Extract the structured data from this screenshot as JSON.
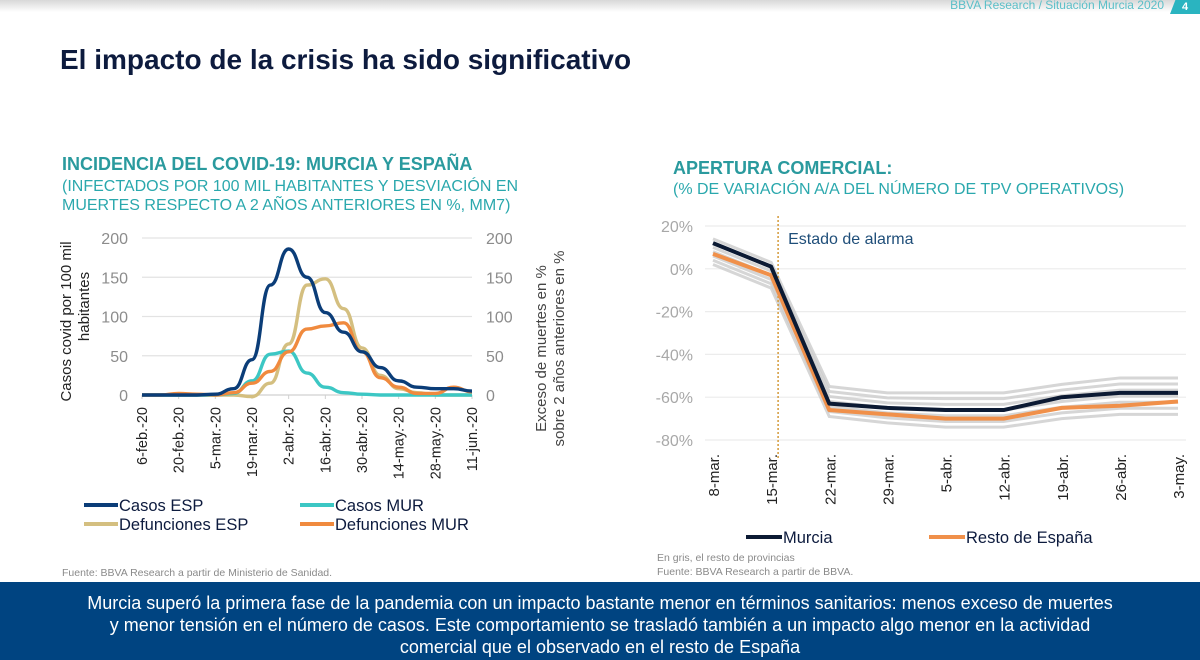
{
  "header": {
    "tag": "BBVA Research / Situación Murcia 2020",
    "page_number": "4"
  },
  "page_title": "El impacto de la crisis ha sido significativo",
  "colors": {
    "casos_esp": "#0b3d78",
    "casos_mur": "#3cc7c4",
    "defunciones_esp": "#d4bf80",
    "defunciones_mur": "#f08a3e",
    "murcia": "#0c1a33",
    "resto_espana": "#f0904a",
    "provincias": "#cccccc",
    "alarm_line": "#d49a3a",
    "banner": "#004481"
  },
  "left_chart": {
    "title": "INCIDENCIA DEL COVID-19: MURCIA Y ESPAÑA",
    "subtitle_line1": "(INFECTADOS POR 100 MIL HABITANTES Y DESVIACIÓN EN",
    "subtitle_line2": "MUERTES RESPECTO A 2 AÑOS ANTERIORES EN %, MM7)",
    "source": "Fuente: BBVA Research a partir de Ministerio de Sanidad."
  },
  "right_chart": {
    "title": "APERTURA COMERCIAL:",
    "subtitle": "(% DE VARIACIÓN A/A DEL NÚMERO DE TPV OPERATIVOS)",
    "note": "En gris, el resto de provincias",
    "source": "Fuente: BBVA Research a partir de BBVA."
  },
  "banner": {
    "line1": "Murcia superó la primera fase de la pandemia con un impacto bastante menor en términos sanitarios: menos exceso de muertes",
    "line2": "y menor tensión en el número de casos. Este comportamiento se trasladó también a un impacto algo menor en la actividad",
    "line3": "comercial que el observado en el resto de España"
  },
  "chart_data": [
    {
      "type": "line",
      "title": "INCIDENCIA DEL COVID-19: MURCIA Y ESPAÑA",
      "ylabel": "Casos covid por 100 mil habitantes",
      "y2label": "Exceso de muertes en % sobre 2 años anteriores en %",
      "ylim": [
        0,
        200
      ],
      "y2lim": [
        0,
        200
      ],
      "yticks": [
        "0",
        "50",
        "100",
        "150",
        "200"
      ],
      "grid": true,
      "legend": "bottom",
      "categories": [
        "6-feb.-20",
        "20-feb.-20",
        "5-mar.-20",
        "19-mar.-20",
        "2-abr.-20",
        "16-abr.-20",
        "30-abr.-20",
        "14-may.-20",
        "28-may.-20",
        "11-jun.-20"
      ],
      "x_days": [
        0,
        7,
        14,
        21,
        28,
        35,
        42,
        49,
        56,
        63,
        70,
        77,
        84,
        91,
        98,
        105,
        112,
        119,
        126
      ],
      "series": [
        {
          "name": "Casos ESP",
          "axis": "left",
          "values": [
            0,
            0,
            0,
            0,
            1,
            8,
            45,
            140,
            186,
            150,
            105,
            80,
            55,
            35,
            18,
            10,
            8,
            8,
            5
          ]
        },
        {
          "name": "Casos MUR",
          "axis": "left",
          "values": [
            0,
            0,
            0,
            0,
            0,
            2,
            18,
            52,
            56,
            28,
            10,
            3,
            1,
            0,
            0,
            0,
            0,
            0,
            0
          ]
        },
        {
          "name": "Defunciones ESP",
          "axis": "right",
          "values": [
            0,
            0,
            0,
            0,
            0,
            0,
            -2,
            15,
            65,
            140,
            148,
            110,
            60,
            25,
            8,
            3,
            0,
            0,
            0
          ]
        },
        {
          "name": "Defunciones MUR",
          "axis": "right",
          "values": [
            0,
            0,
            2,
            1,
            0,
            3,
            15,
            30,
            55,
            84,
            88,
            92,
            55,
            22,
            10,
            2,
            2,
            10,
            4
          ]
        }
      ]
    },
    {
      "type": "line",
      "title": "APERTURA COMERCIAL",
      "ylabel": "% de variación a/a",
      "ylim": [
        -80,
        20
      ],
      "yticks": [
        "20%",
        "0%",
        "-20%",
        "-40%",
        "-60%",
        "-80%"
      ],
      "grid": true,
      "legend": "bottom",
      "categories": [
        "8-mar.",
        "15-mar.",
        "22-mar.",
        "29-mar.",
        "5-abr.",
        "12-abr.",
        "19-abr.",
        "26-abr.",
        "3-may."
      ],
      "annotation": {
        "label": "Estado de alarma",
        "at": "14-mar."
      },
      "series": [
        {
          "name": "Murcia",
          "values": [
            12,
            1,
            -63,
            -65,
            -66,
            -66,
            -60,
            -58,
            -58
          ]
        },
        {
          "name": "Resto de España",
          "values": [
            7,
            -3,
            -66,
            -68,
            -70,
            -70,
            -65,
            -64,
            -62
          ]
        }
      ],
      "grey_band": {
        "name": "Resto de provincias",
        "upper": [
          14,
          3,
          -55,
          -58,
          -58,
          -58,
          -54,
          -51,
          -51
        ],
        "lower": [
          2,
          -9,
          -69,
          -72,
          -74,
          -74,
          -70,
          -68,
          -68
        ]
      }
    }
  ]
}
